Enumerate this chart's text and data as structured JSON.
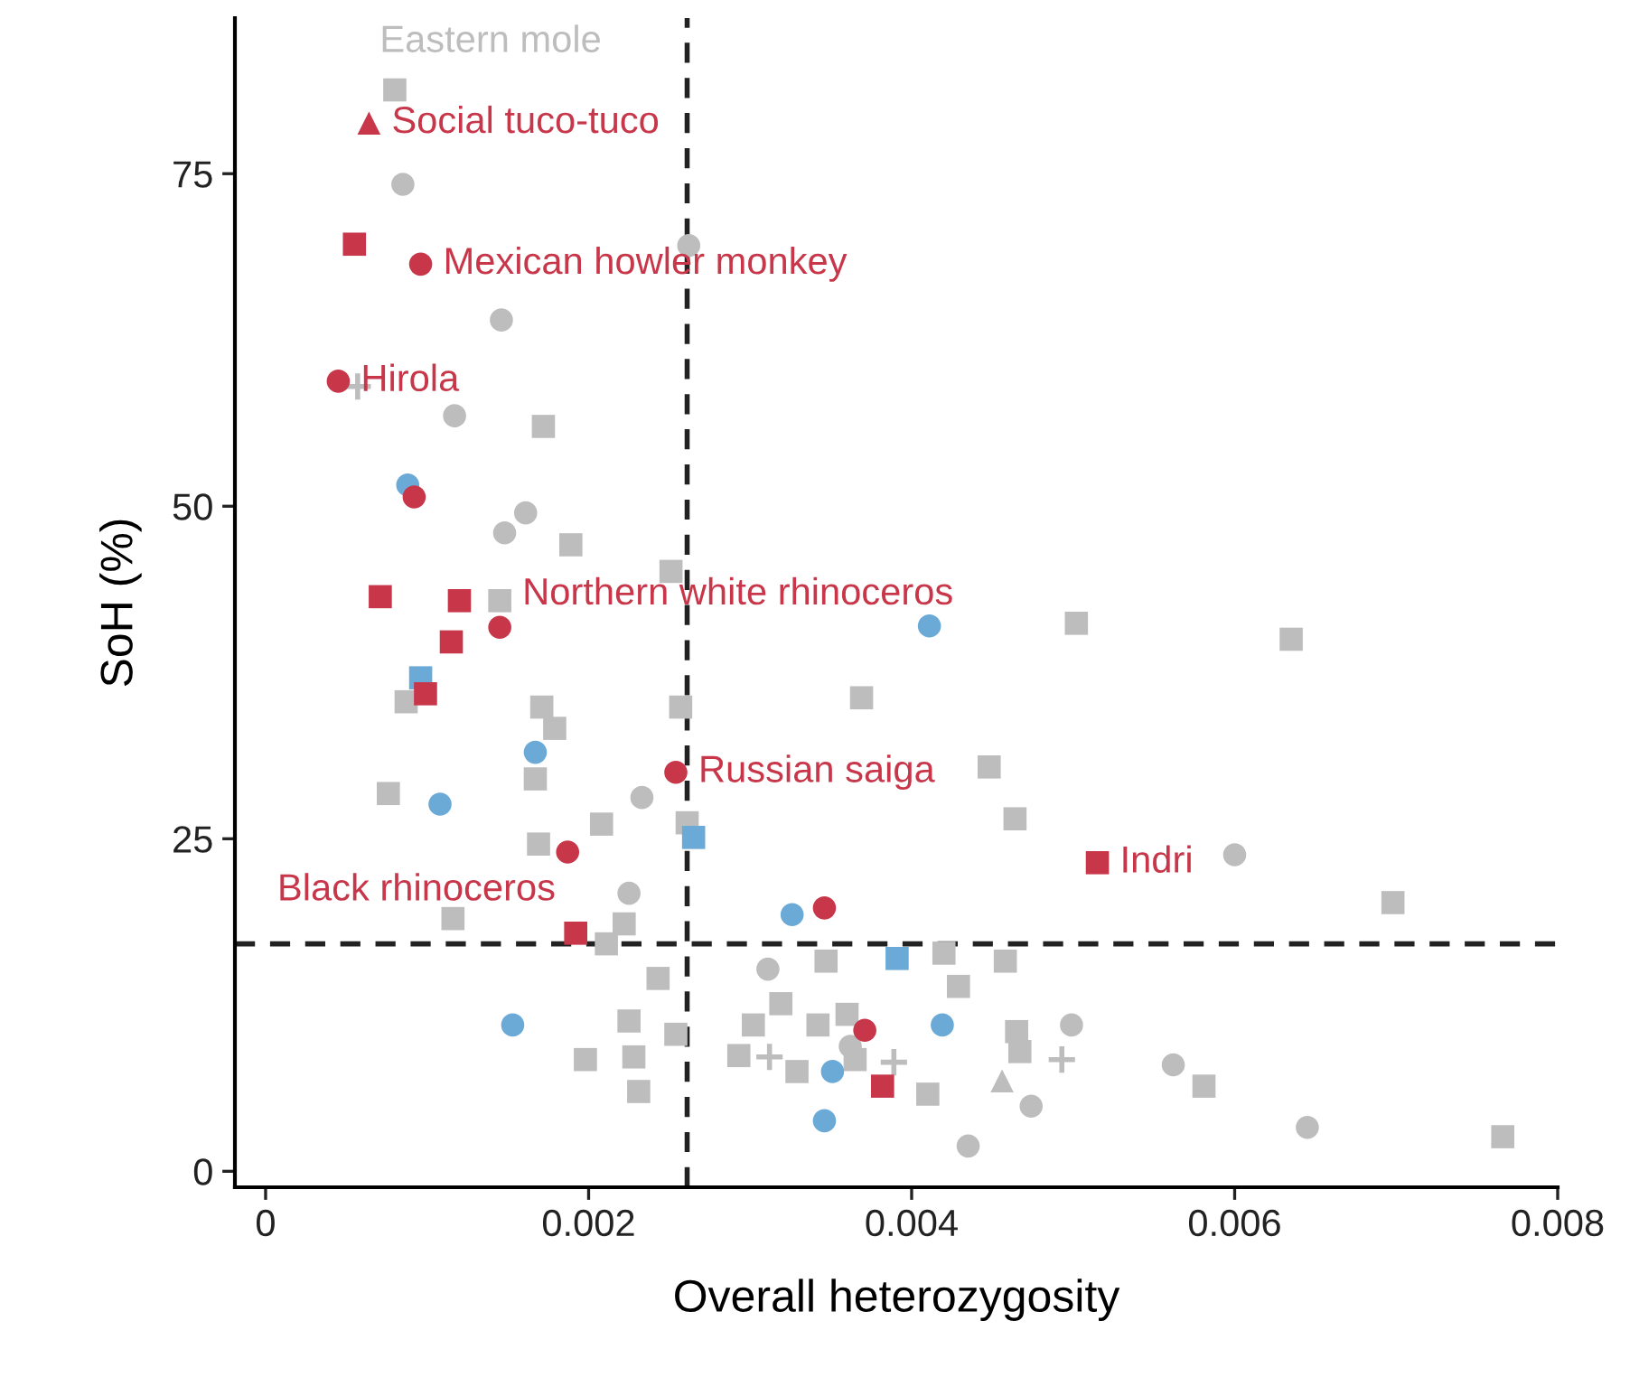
{
  "chart_data": {
    "type": "scatter",
    "xlabel": "Overall heterozygosity",
    "ylabel": "SoH (%)",
    "xlim": [
      -0.00019,
      0.008
    ],
    "ylim": [
      -1.2,
      86.7
    ],
    "xticks": [
      0,
      0.002,
      0.004,
      0.006,
      0.008
    ],
    "yticks": [
      0,
      25,
      50,
      75
    ],
    "grid": false,
    "legend": false,
    "series": [
      {
        "color": "#bdbdbd",
        "marker": "square",
        "x": [
          0.0008,
          0.00172,
          0.00189,
          0.00251,
          0.00145,
          0.00087,
          0.00171,
          0.00179,
          0.00257,
          0.00369,
          0.00167,
          0.00076,
          0.00208,
          0.00261,
          0.00169,
          0.00116,
          0.00222,
          0.00211,
          0.00243,
          0.00225,
          0.00254,
          0.00198,
          0.00228,
          0.00231,
          0.00347,
          0.00319,
          0.00302,
          0.00342,
          0.0036,
          0.00293,
          0.00329,
          0.00365,
          0.0042,
          0.00429,
          0.0041,
          0.00502,
          0.00635,
          0.00448,
          0.00464,
          0.00698,
          0.00458,
          0.00465,
          0.00467,
          0.00581,
          0.00766
        ],
        "values": [
          81.3,
          56.0,
          47.1,
          45.1,
          42.9,
          35.3,
          34.9,
          33.3,
          34.9,
          35.6,
          29.5,
          28.4,
          26.1,
          26.2,
          24.6,
          19.0,
          18.6,
          17.1,
          14.5,
          11.3,
          10.3,
          8.4,
          8.6,
          6.0,
          15.8,
          12.6,
          11.0,
          11.0,
          11.8,
          8.7,
          7.5,
          8.4,
          16.4,
          13.9,
          5.8,
          41.2,
          40.0,
          30.4,
          26.5,
          20.2,
          15.8,
          10.5,
          9.0,
          6.4,
          2.6
        ]
      },
      {
        "color": "#bdbdbd",
        "marker": "circle",
        "x": [
          0.00085,
          0.00262,
          0.00146,
          0.00117,
          0.00161,
          0.00148,
          0.00233,
          0.00225,
          0.00311,
          0.00499,
          0.00362,
          0.00562,
          0.00474,
          0.00435,
          0.00645,
          0.006
        ],
        "values": [
          74.2,
          69.6,
          64.0,
          56.8,
          49.5,
          48.0,
          28.1,
          20.9,
          15.2,
          11.0,
          9.4,
          8.0,
          4.9,
          1.9,
          3.3,
          23.8
        ]
      },
      {
        "color": "#bdbdbd",
        "marker": "triangle",
        "x": [
          0.00456
        ],
        "values": [
          6.8
        ]
      },
      {
        "color": "#bdbdbd",
        "marker": "cross",
        "x": [
          0.00057,
          0.00312,
          0.00389,
          0.00493
        ],
        "values": [
          59.0,
          8.6,
          8.2,
          8.4
        ]
      },
      {
        "color": "#6baad6",
        "marker": "circle",
        "x": [
          0.00088,
          0.00411,
          0.00167,
          0.00108,
          0.00326,
          0.00153,
          0.00419,
          0.00351,
          0.00346
        ],
        "values": [
          51.6,
          41.0,
          31.5,
          27.6,
          19.3,
          11.0,
          11.0,
          7.5,
          3.8
        ]
      },
      {
        "color": "#6baad6",
        "marker": "square",
        "x": [
          0.00096,
          0.00265,
          0.00391
        ],
        "values": [
          37.1,
          25.1,
          16.0
        ]
      },
      {
        "color": "#c8364a",
        "marker": "circle",
        "x": [
          0.00096,
          0.00045,
          0.00092,
          0.00145,
          0.00254,
          0.00187,
          0.00346,
          0.00371
        ],
        "values": [
          68.2,
          59.4,
          50.7,
          40.9,
          30.0,
          24.0,
          19.8,
          10.6
        ]
      },
      {
        "color": "#c8364a",
        "marker": "square",
        "x": [
          0.00055,
          0.00071,
          0.0012,
          0.00115,
          0.00099,
          0.00192,
          0.00382,
          0.00515
        ],
        "values": [
          69.7,
          43.2,
          42.9,
          39.8,
          35.9,
          17.9,
          6.4,
          23.2
        ]
      },
      {
        "color": "#c8364a",
        "marker": "triangle",
        "x": [
          0.00064
        ],
        "values": [
          78.8
        ]
      }
    ],
    "ref_lines": [
      {
        "axis": "x",
        "value": 0.00261,
        "color": "#222222",
        "line_style": "dashed"
      },
      {
        "axis": "y",
        "value": 17.1,
        "color": "#222222",
        "line_style": "dashed"
      }
    ],
    "annotations": [
      {
        "text": "Eastern mole",
        "x": 0.0008,
        "y": 81.3
      },
      {
        "text": "Social tuco-tuco",
        "x": 0.00064,
        "y": 78.8
      },
      {
        "text": "Mexican howler monkey",
        "x": 0.00096,
        "y": 68.2
      },
      {
        "text": "Hirola",
        "x": 0.00045,
        "y": 59.4
      },
      {
        "text": "Northern white rhinoceros",
        "x": 0.00145,
        "y": 40.9
      },
      {
        "text": "Russian saiga",
        "x": 0.00254,
        "y": 30.0
      },
      {
        "text": "Black rhinoceros",
        "x": 0.00192,
        "y": 17.9
      },
      {
        "text": "Indri",
        "x": 0.00515,
        "y": 23.2
      }
    ]
  }
}
